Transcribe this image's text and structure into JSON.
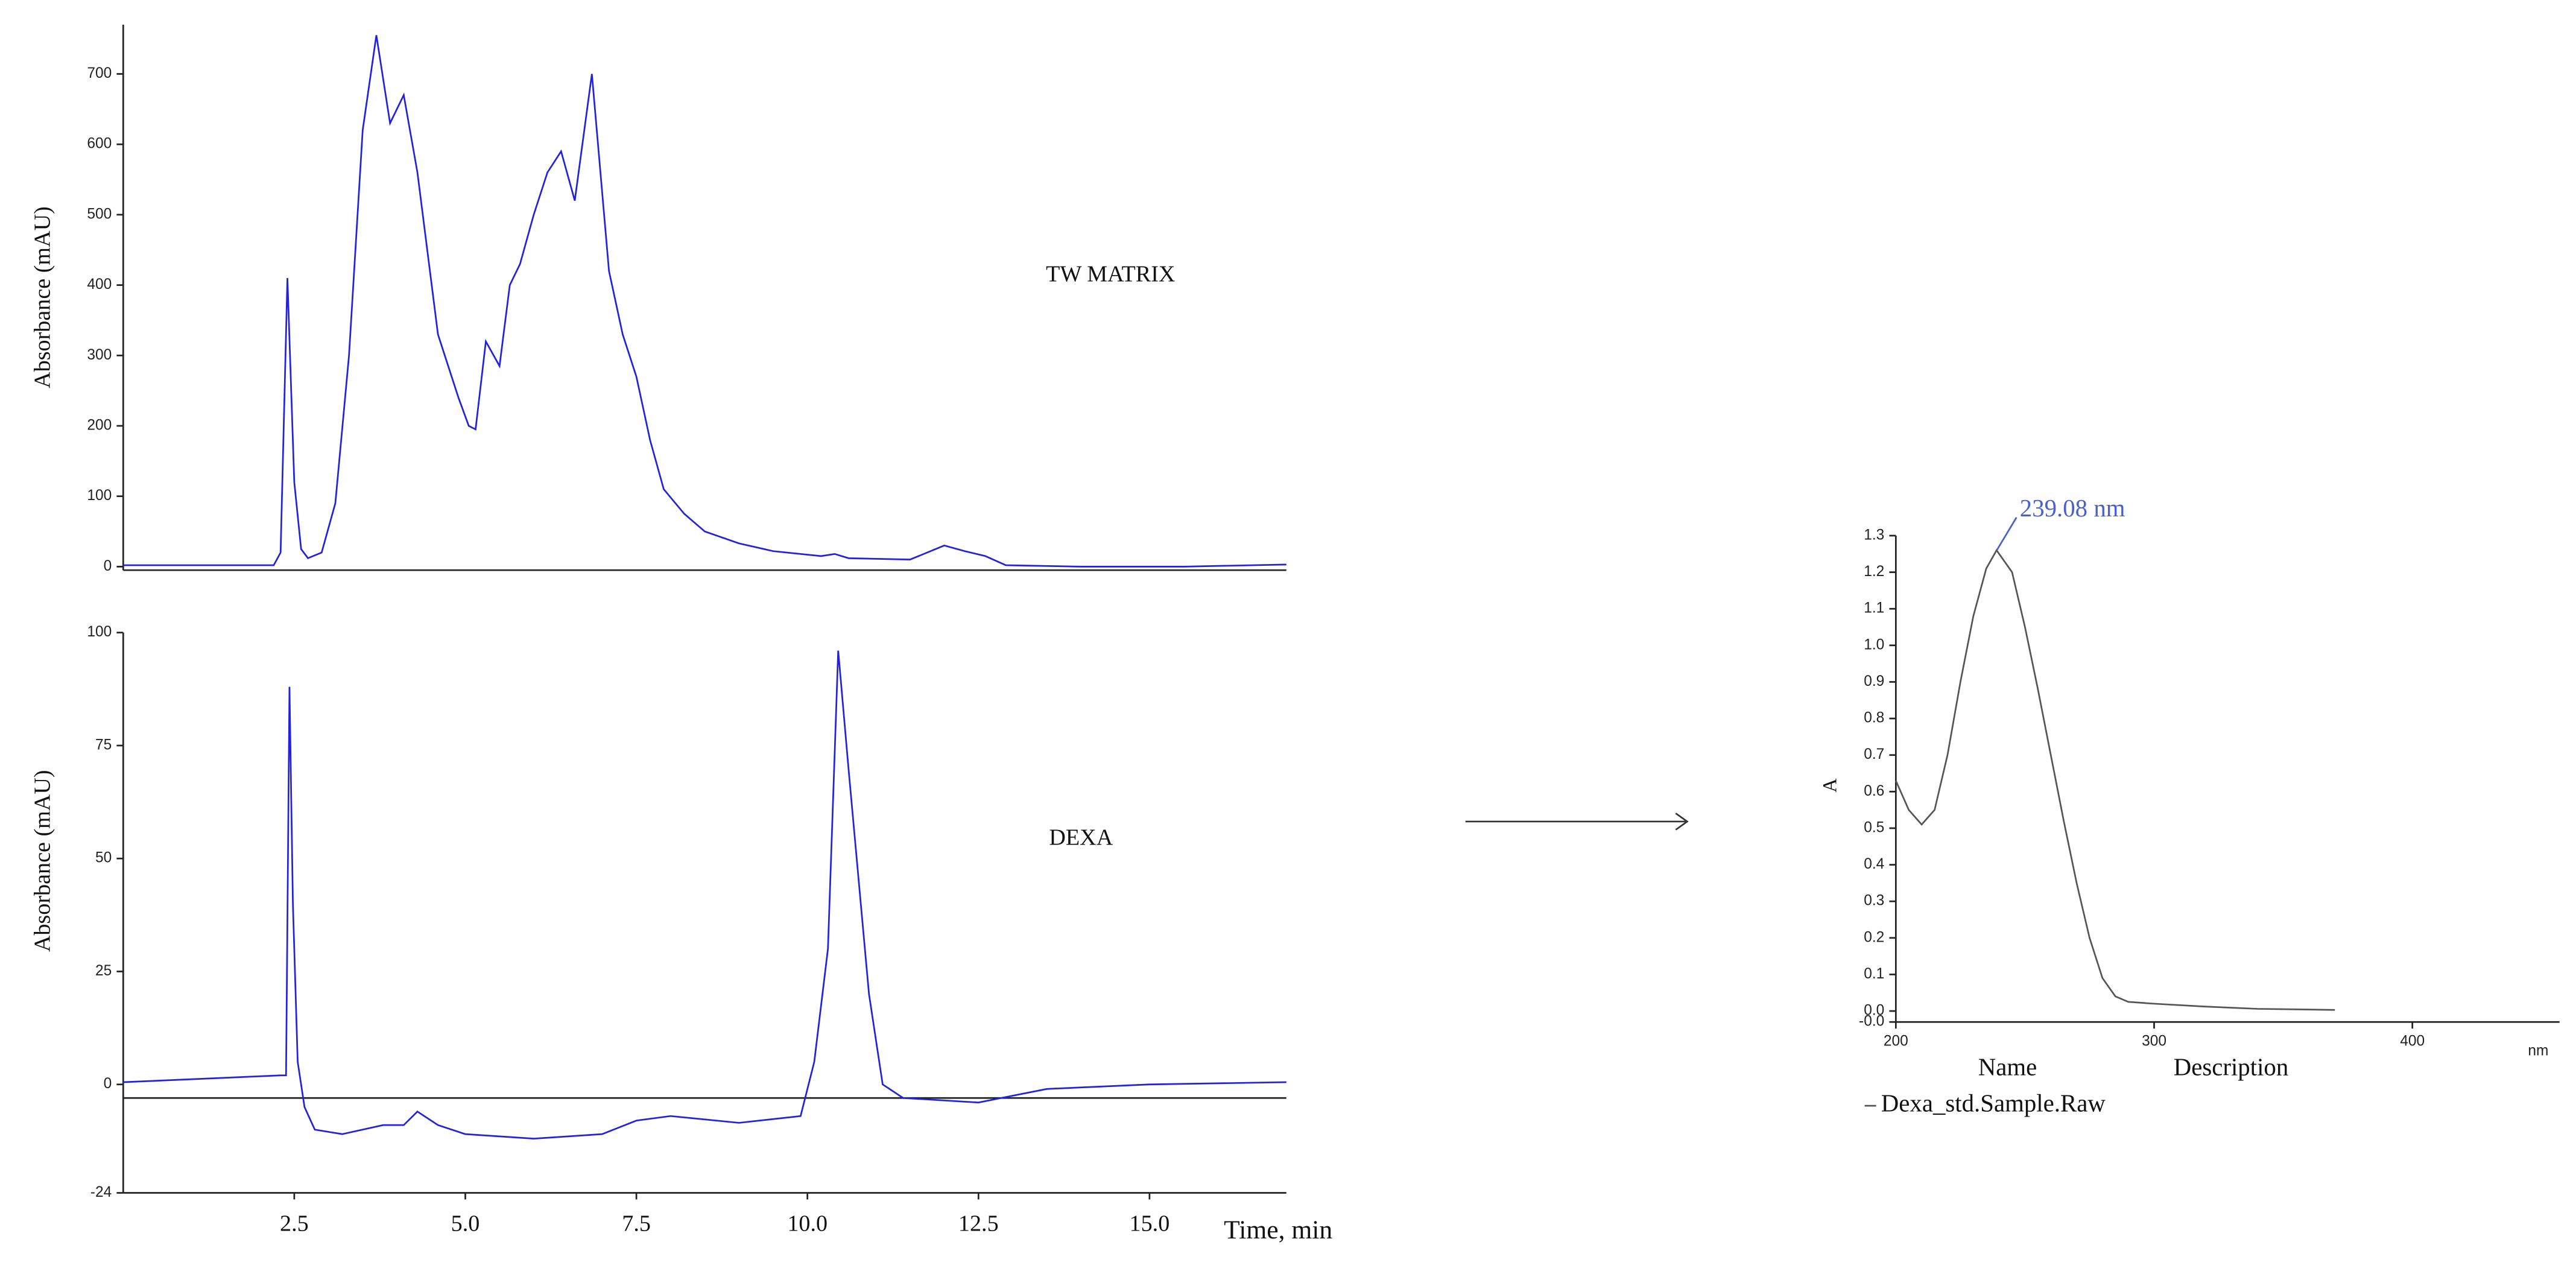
{
  "chart_data": [
    {
      "type": "line",
      "y_label": "Absorbance (mAU)",
      "label": "TW MATRIX",
      "xlim": [
        0,
        17
      ],
      "ylim": [
        -5,
        770
      ],
      "yticks": [
        0,
        100,
        200,
        300,
        400,
        500,
        600,
        700
      ],
      "x": [
        0,
        2.2,
        2.3,
        2.4,
        2.5,
        2.6,
        2.7,
        2.9,
        3.1,
        3.3,
        3.5,
        3.7,
        3.9,
        4.1,
        4.3,
        4.6,
        4.7,
        4.9,
        5.05,
        5.15,
        5.3,
        5.5,
        5.65,
        5.8,
        6.0,
        6.2,
        6.4,
        6.6,
        6.85,
        7.1,
        7.3,
        7.5,
        7.7,
        7.9,
        8.2,
        8.5,
        9.0,
        9.5,
        10.2,
        10.4,
        10.6,
        11.5,
        12.0,
        12.3,
        12.6,
        12.9,
        14.0,
        15.5,
        17
      ],
      "series": [
        {
          "name": "TW MATRIX",
          "color": "#2222dd",
          "values": [
            2,
            2,
            20,
            410,
            120,
            25,
            12,
            20,
            90,
            300,
            620,
            755,
            630,
            670,
            560,
            330,
            300,
            240,
            200,
            195,
            320,
            285,
            400,
            430,
            500,
            560,
            590,
            520,
            700,
            420,
            330,
            270,
            180,
            110,
            75,
            50,
            33,
            22,
            15,
            18,
            12,
            10,
            30,
            22,
            15,
            2,
            0,
            0,
            3
          ]
        }
      ]
    },
    {
      "type": "line",
      "y_label": "Absorbance (mAU)",
      "label": "DEXA",
      "x_label": "Time, min",
      "xlim": [
        0,
        17
      ],
      "ylim": [
        -24,
        100
      ],
      "yticks": [
        -24,
        0,
        25,
        50,
        75,
        100
      ],
      "xticks": [
        2.5,
        {
          "value": 5,
          "label": "5.0"
        },
        7.5,
        {
          "value": 10,
          "label": "10.0"
        },
        12.5,
        {
          "value": 15,
          "label": "15.0"
        }
      ],
      "baseline": -3,
      "x": [
        0,
        2.3,
        2.38,
        2.43,
        2.48,
        2.55,
        2.65,
        2.8,
        3.2,
        3.8,
        4.1,
        4.3,
        4.6,
        5.0,
        6.0,
        7.0,
        7.5,
        8.0,
        9.0,
        9.9,
        10.1,
        10.3,
        10.45,
        10.6,
        10.75,
        10.9,
        11.1,
        11.4,
        12.5,
        13.5,
        15.0,
        17
      ],
      "series": [
        {
          "name": "DEXA",
          "color": "#2222dd",
          "values": [
            0.5,
            2,
            2,
            88,
            40,
            5,
            -5,
            -10,
            -11,
            -9,
            -9,
            -6,
            -9,
            -11,
            -12,
            -11,
            -8,
            -7,
            -8.5,
            -7,
            5,
            30,
            96,
            70,
            45,
            20,
            0,
            -3,
            -4,
            -1,
            0,
            0.5
          ]
        }
      ]
    },
    {
      "type": "line",
      "y_label": "A",
      "x_label": "nm",
      "xlim": [
        200,
        457
      ],
      "ylim": [
        -0.03,
        1.3
      ],
      "xticks": [
        200,
        300,
        400
      ],
      "yticks": [
        {
          "value": -0.03,
          "label": "-0.0"
        },
        {
          "value": 0,
          "label": "0.0"
        },
        0.1,
        0.2,
        0.3,
        0.4,
        0.5,
        0.6,
        0.7,
        0.8,
        0.9,
        {
          "value": 1,
          "label": "1.0"
        },
        1.1,
        1.2,
        1.3
      ],
      "annotations": [
        {
          "text": "239.08 nm",
          "x": 239.08,
          "y": 1.26
        }
      ],
      "legend_headers": [
        "Name",
        "Description"
      ],
      "x": [
        200,
        205,
        210,
        215,
        220,
        225,
        230,
        235,
        239,
        245,
        250,
        255,
        260,
        265,
        270,
        275,
        280,
        285,
        290,
        300,
        320,
        340,
        360,
        370
      ],
      "series": [
        {
          "name": "Dexa_std.Sample.Raw",
          "color": "#555555",
          "values": [
            0.63,
            0.55,
            0.51,
            0.55,
            0.7,
            0.9,
            1.08,
            1.21,
            1.26,
            1.2,
            1.05,
            0.88,
            0.7,
            0.52,
            0.35,
            0.2,
            0.09,
            0.04,
            0.025,
            0.02,
            0.012,
            0.006,
            0.004,
            0.003
          ]
        }
      ]
    }
  ]
}
